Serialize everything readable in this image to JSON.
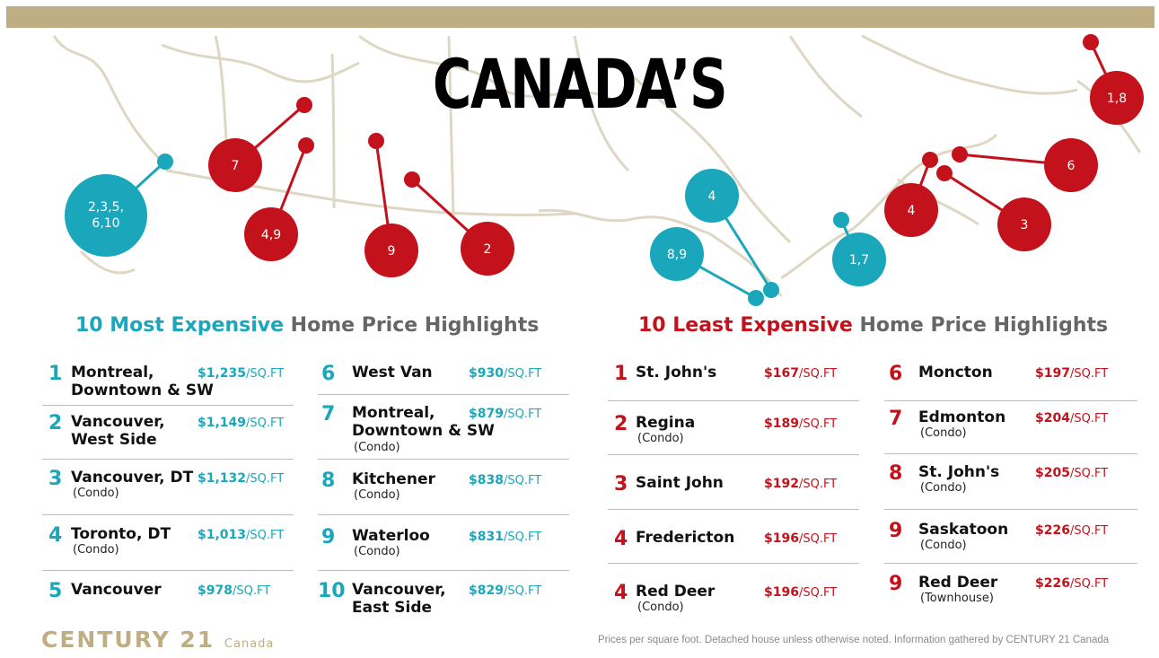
{
  "title": "CANADA’S",
  "colors": {
    "teal": "#1aa7bc",
    "red": "#c3121b",
    "gold": "#bfae84",
    "map_lines": "#ded7c3"
  },
  "most_heading": {
    "accent": "10 Most Expensive",
    "rest": "Home Price Highlights"
  },
  "least_heading": {
    "accent": "10 Least Expensive",
    "rest": "Home Price Highlights"
  },
  "unit": "/SQ.FT",
  "most": [
    {
      "rank": "1",
      "city": "Montreal,",
      "city2": "Downtown & SW",
      "sub": "",
      "price": "$1,235"
    },
    {
      "rank": "2",
      "city": "Vancouver,",
      "city2": "West Side",
      "sub": "",
      "price": "$1,149"
    },
    {
      "rank": "3",
      "city": "Vancouver, DT",
      "city2": "",
      "sub": "(Condo)",
      "price": "$1,132"
    },
    {
      "rank": "4",
      "city": "Toronto, DT",
      "city2": "",
      "sub": "(Condo)",
      "price": "$1,013"
    },
    {
      "rank": "5",
      "city": "Vancouver",
      "city2": "",
      "sub": "",
      "price": "$978"
    },
    {
      "rank": "6",
      "city": "West Van",
      "city2": "",
      "sub": "",
      "price": "$930"
    },
    {
      "rank": "7",
      "city": "Montreal,",
      "city2": "Downtown & SW",
      "sub": "(Condo)",
      "price": "$879"
    },
    {
      "rank": "8",
      "city": "Kitchener",
      "city2": "",
      "sub": "(Condo)",
      "price": "$838"
    },
    {
      "rank": "9",
      "city": "Waterloo",
      "city2": "",
      "sub": "(Condo)",
      "price": "$831"
    },
    {
      "rank": "10",
      "city": "Vancouver,",
      "city2": "East Side",
      "sub": "",
      "price": "$829"
    }
  ],
  "least": [
    {
      "rank": "1",
      "city": "St. John's",
      "sub": "",
      "price": "$167"
    },
    {
      "rank": "2",
      "city": "Regina",
      "sub": "(Condo)",
      "price": "$189"
    },
    {
      "rank": "3",
      "city": "Saint John",
      "sub": "",
      "price": "$192"
    },
    {
      "rank": "4",
      "city": "Fredericton",
      "sub": "",
      "price": "$196"
    },
    {
      "rank": "4",
      "city": "Red Deer",
      "sub": "(Condo)",
      "price": "$196"
    },
    {
      "rank": "6",
      "city": "Moncton",
      "sub": "",
      "price": "$197"
    },
    {
      "rank": "7",
      "city": "Edmonton",
      "sub": "(Condo)",
      "price": "$204"
    },
    {
      "rank": "8",
      "city": "St. John's",
      "sub": "(Condo)",
      "price": "$205"
    },
    {
      "rank": "9",
      "city": "Saskatoon",
      "sub": "(Condo)",
      "price": "$226"
    },
    {
      "rank": "9",
      "city": "Red Deer",
      "sub": "(Townhouse)",
      "price": "$226"
    }
  ],
  "map_markers": [
    {
      "label": "2,3,5,\n6,10",
      "color": "teal"
    },
    {
      "label": "7",
      "color": "red"
    },
    {
      "label": "4,9",
      "color": "red"
    },
    {
      "label": "9",
      "color": "red"
    },
    {
      "label": "2",
      "color": "red"
    },
    {
      "label": "4",
      "color": "teal"
    },
    {
      "label": "8,9",
      "color": "teal"
    },
    {
      "label": "1,7",
      "color": "teal"
    },
    {
      "label": "4",
      "color": "red"
    },
    {
      "label": "3",
      "color": "red"
    },
    {
      "label": "6",
      "color": "red"
    },
    {
      "label": "1,8",
      "color": "red"
    }
  ],
  "logo": {
    "main": "CENTURY 21",
    "small": "Canada"
  },
  "footnote": "Prices per square foot. Detached house unless otherwise noted. Information gathered by CENTURY 21 Canada"
}
